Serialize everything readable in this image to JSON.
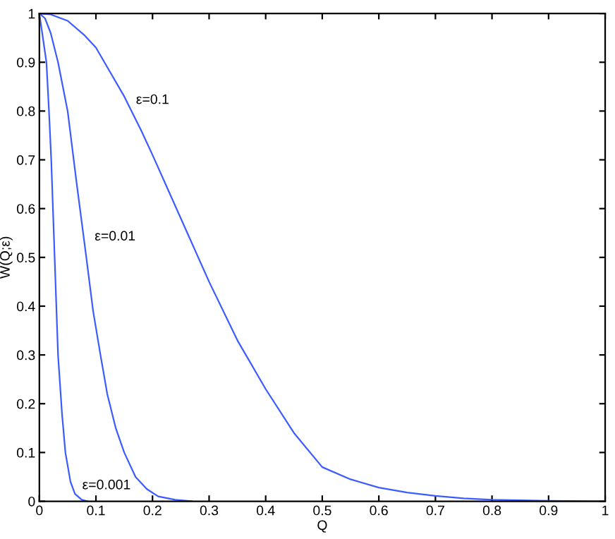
{
  "chart_data": {
    "type": "line",
    "xlabel": "Q",
    "ylabel": "W(Q;ε)",
    "xlim": [
      0,
      1
    ],
    "ylim": [
      0,
      1
    ],
    "xticks": [
      0,
      0.1,
      0.2,
      0.3,
      0.4,
      0.5,
      0.6,
      0.7,
      0.8,
      0.9,
      1
    ],
    "yticks": [
      0,
      0.1,
      0.2,
      0.3,
      0.4,
      0.5,
      0.6,
      0.7,
      0.8,
      0.9,
      1
    ],
    "grid": false,
    "legend": false,
    "marker": "none",
    "line_style": "solid",
    "series": [
      {
        "color": "#3d5cff",
        "x": [
          0,
          0.02,
          0.05,
          0.08,
          0.1,
          0.13,
          0.15,
          0.18,
          0.2,
          0.25,
          0.3,
          0.35,
          0.4,
          0.45,
          0.5,
          0.55,
          0.6,
          0.65,
          0.7,
          0.75,
          0.8,
          0.9,
          1
        ],
        "values": [
          1,
          0.998,
          0.985,
          0.955,
          0.93,
          0.87,
          0.83,
          0.76,
          0.71,
          0.58,
          0.45,
          0.33,
          0.23,
          0.14,
          0.07,
          0.045,
          0.028,
          0.018,
          0.011,
          0.006,
          0.003,
          0.001,
          0
        ]
      },
      {
        "color": "#3d5cff",
        "x": [
          0,
          0.01,
          0.02,
          0.033,
          0.05,
          0.065,
          0.083,
          0.095,
          0.108,
          0.12,
          0.135,
          0.15,
          0.17,
          0.19,
          0.21,
          0.24,
          0.27
        ],
        "values": [
          1,
          0.99,
          0.96,
          0.9,
          0.8,
          0.66,
          0.5,
          0.39,
          0.3,
          0.22,
          0.15,
          0.1,
          0.05,
          0.025,
          0.01,
          0.003,
          0
        ]
      },
      {
        "color": "#3d5cff",
        "x": [
          0,
          0.005,
          0.0125,
          0.017,
          0.021,
          0.027,
          0.033,
          0.04,
          0.046,
          0.055,
          0.063,
          0.075,
          0.085
        ],
        "values": [
          1,
          0.96,
          0.9,
          0.8,
          0.7,
          0.5,
          0.3,
          0.18,
          0.1,
          0.04,
          0.015,
          0.003,
          0
        ]
      }
    ],
    "annotations": [
      {
        "text": "ε=0.1",
        "x": 0.15,
        "y": 0.83
      },
      {
        "text": "ε=0.01",
        "x": 0.077,
        "y": 0.55
      },
      {
        "text": "ε=0.001",
        "x": 0.055,
        "y": 0.04
      }
    ]
  }
}
